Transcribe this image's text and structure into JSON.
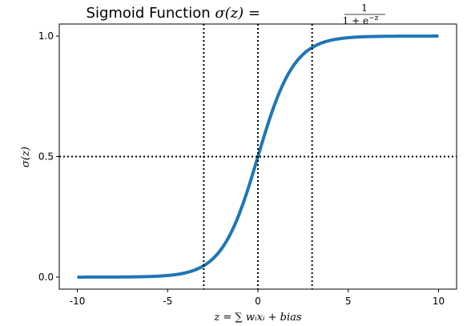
{
  "chart_data": {
    "type": "line",
    "title": "Sigmoid Function",
    "title_math": "σ(z) =",
    "title_fraction": {
      "numerator": "1",
      "denominator": "1 + e",
      "denominator_exp": "−z"
    },
    "xlabel": "z = ∑ wᵢxᵢ + bias",
    "ylabel": "σ(z)",
    "xlim": [
      -11.0,
      11.0
    ],
    "ylim": [
      -0.05,
      1.05
    ],
    "xticks": [
      -10,
      -5,
      0,
      5,
      10
    ],
    "xtick_labels": [
      "-10",
      "-5",
      "0",
      "5",
      "10"
    ],
    "yticks": [
      0.0,
      0.5,
      1.0
    ],
    "ytick_labels": [
      "0.0",
      "0.5",
      "1.0"
    ],
    "grid": false,
    "line_color": "#1f77b4",
    "reference_line_color": "#000000",
    "series": [
      {
        "function": "sigmoid",
        "x_range": [
          -10,
          10
        ],
        "samples": 201
      }
    ],
    "reference_lines": {
      "vertical": [
        -3,
        0,
        3
      ],
      "horizontal": [
        0.5
      ],
      "style": "dotted"
    }
  }
}
